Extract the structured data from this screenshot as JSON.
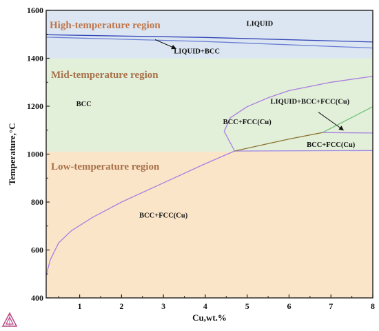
{
  "chart_data": {
    "type": "phase-diagram",
    "xlabel": "Cu,wt.%",
    "ylabel": "Temperature,°C",
    "xlim": [
      0.2,
      8
    ],
    "ylim": [
      400,
      1600
    ],
    "x_ticks": [
      1,
      2,
      3,
      4,
      5,
      6,
      7,
      8
    ],
    "y_ticks": [
      400,
      600,
      800,
      1000,
      1200,
      1400,
      1600
    ],
    "region_bands": [
      {
        "name": "High-temperature region",
        "y_range": [
          1400,
          1600
        ],
        "color": "#dbe6f2",
        "label_color": "#c0754a"
      },
      {
        "name": "Mid-temperature region",
        "y_range": [
          1010,
          1400
        ],
        "color": "#e2efd9",
        "label_color": "#a7714a"
      },
      {
        "name": "Low-temperature region",
        "y_range": [
          400,
          1010
        ],
        "color": "#fbe5c8",
        "label_color": "#a7714a"
      }
    ],
    "phase_labels": [
      {
        "text": "LIQUID",
        "x": 5.3,
        "y": 1535
      },
      {
        "text": "LIQUID+BCC",
        "x": 3.8,
        "y": 1420
      },
      {
        "text": "BCC",
        "x": 1.1,
        "y": 1200
      },
      {
        "text": "LIQUID+BCC+FCC(Cu)",
        "x": 6.5,
        "y": 1210
      },
      {
        "text": "BCC+FCC(Cu)",
        "x": 5.0,
        "y": 1125
      },
      {
        "text": "BCC+FCC(Cu)",
        "x": 7.0,
        "y": 1030
      },
      {
        "text": "BCC+FCC(Cu)",
        "x": 3.0,
        "y": 735
      }
    ],
    "arrows": [
      {
        "from": [
          2.8,
          1478
        ],
        "to": [
          3.3,
          1440
        ]
      },
      {
        "from": [
          6.7,
          1175
        ],
        "to": [
          7.3,
          1100
        ]
      }
    ],
    "series": [
      {
        "color": "#3346b8",
        "points": [
          [
            0.2,
            1498
          ],
          [
            4.0,
            1487
          ],
          [
            8.0,
            1468
          ]
        ]
      },
      {
        "color": "#6c7fd3",
        "points": [
          [
            0.2,
            1488
          ],
          [
            4.0,
            1470
          ],
          [
            8.0,
            1443
          ]
        ]
      },
      {
        "color": "#a87ee0",
        "points": [
          [
            0.2,
            495
          ],
          [
            0.3,
            560
          ],
          [
            0.5,
            630
          ],
          [
            0.8,
            680
          ],
          [
            1.3,
            735
          ],
          [
            2.0,
            800
          ],
          [
            3.0,
            880
          ],
          [
            4.0,
            960
          ],
          [
            4.7,
            1013
          ]
        ]
      },
      {
        "color": "#a87ee0",
        "points": [
          [
            8.0,
            1325
          ],
          [
            7.0,
            1300
          ],
          [
            6.0,
            1265
          ],
          [
            5.5,
            1235
          ],
          [
            5.0,
            1198
          ],
          [
            4.6,
            1152
          ],
          [
            4.45,
            1095
          ],
          [
            4.7,
            1013
          ]
        ]
      },
      {
        "color": "#a87ee0",
        "points": [
          [
            4.7,
            1013
          ],
          [
            8.0,
            1015
          ]
        ]
      },
      {
        "color": "#8a7430",
        "points": [
          [
            4.7,
            1013
          ],
          [
            6.0,
            1063
          ],
          [
            6.8,
            1090
          ]
        ]
      },
      {
        "color": "#6fbf7a",
        "points": [
          [
            6.8,
            1090
          ],
          [
            8.0,
            1198
          ]
        ]
      },
      {
        "color": "#a87ee0",
        "points": [
          [
            6.8,
            1090
          ],
          [
            8.0,
            1088
          ]
        ]
      }
    ]
  }
}
